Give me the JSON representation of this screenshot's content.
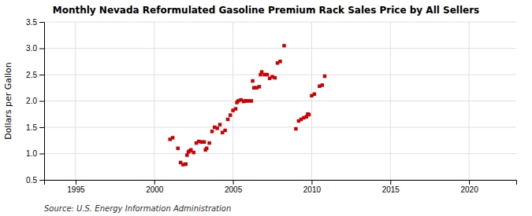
{
  "chart_data": {
    "type": "scatter",
    "title": "Monthly Nevada Reformulated Gasoline Premium Rack Sales Price by All Sellers",
    "ylabel": "Dollars per Gallon",
    "annotations": [
      "Source: U.S. Energy Information Administration"
    ],
    "color": "#cc0000",
    "marker": "square",
    "grid": true,
    "xlim": [
      1993,
      2023
    ],
    "ylim": [
      0.5,
      3.5
    ],
    "xticks": [
      1995,
      2000,
      2005,
      2010,
      2015,
      2020
    ],
    "yticks": [
      0.5,
      {
        "value": 1.0,
        "label": "1.0"
      },
      1.5,
      {
        "value": 2.0,
        "label": "2.0"
      },
      2.5,
      {
        "value": 3.0,
        "label": "3.0"
      },
      3.5
    ],
    "x": [
      2001.0,
      2001.17,
      2001.5,
      2001.67,
      2001.83,
      2002.0,
      2002.08,
      2002.17,
      2002.25,
      2002.33,
      2002.5,
      2002.67,
      2002.83,
      2003.0,
      2003.17,
      2003.25,
      2003.33,
      2003.5,
      2003.67,
      2003.83,
      2004.0,
      2004.17,
      2004.33,
      2004.5,
      2004.67,
      2004.83,
      2005.0,
      2005.17,
      2005.25,
      2005.33,
      2005.5,
      2005.67,
      2005.75,
      2005.83,
      2006.0,
      2006.17,
      2006.25,
      2006.33,
      2006.5,
      2006.67,
      2006.75,
      2006.83,
      2007.0,
      2007.17,
      2007.33,
      2007.5,
      2007.67,
      2007.83,
      2008.0,
      2008.25,
      2009.0,
      2009.17,
      2009.33,
      2009.5,
      2009.67,
      2009.75,
      2009.83,
      2010.0,
      2010.17,
      2010.5,
      2010.67,
      2010.83
    ],
    "values": [
      1.27,
      1.3,
      1.1,
      0.83,
      0.79,
      0.8,
      0.97,
      1.03,
      1.05,
      1.07,
      1.02,
      1.2,
      1.23,
      1.22,
      1.22,
      1.07,
      1.1,
      1.2,
      1.42,
      1.5,
      1.48,
      1.55,
      1.4,
      1.44,
      1.65,
      1.73,
      1.82,
      1.85,
      1.97,
      2.0,
      2.02,
      1.99,
      2.0,
      2.0,
      2.0,
      2.0,
      2.38,
      2.25,
      2.25,
      2.27,
      2.5,
      2.55,
      2.5,
      2.5,
      2.43,
      2.46,
      2.44,
      2.72,
      2.75,
      3.05,
      1.47,
      1.62,
      1.65,
      1.68,
      1.7,
      1.75,
      1.74,
      2.1,
      2.13,
      2.28,
      2.3,
      2.47
    ]
  }
}
